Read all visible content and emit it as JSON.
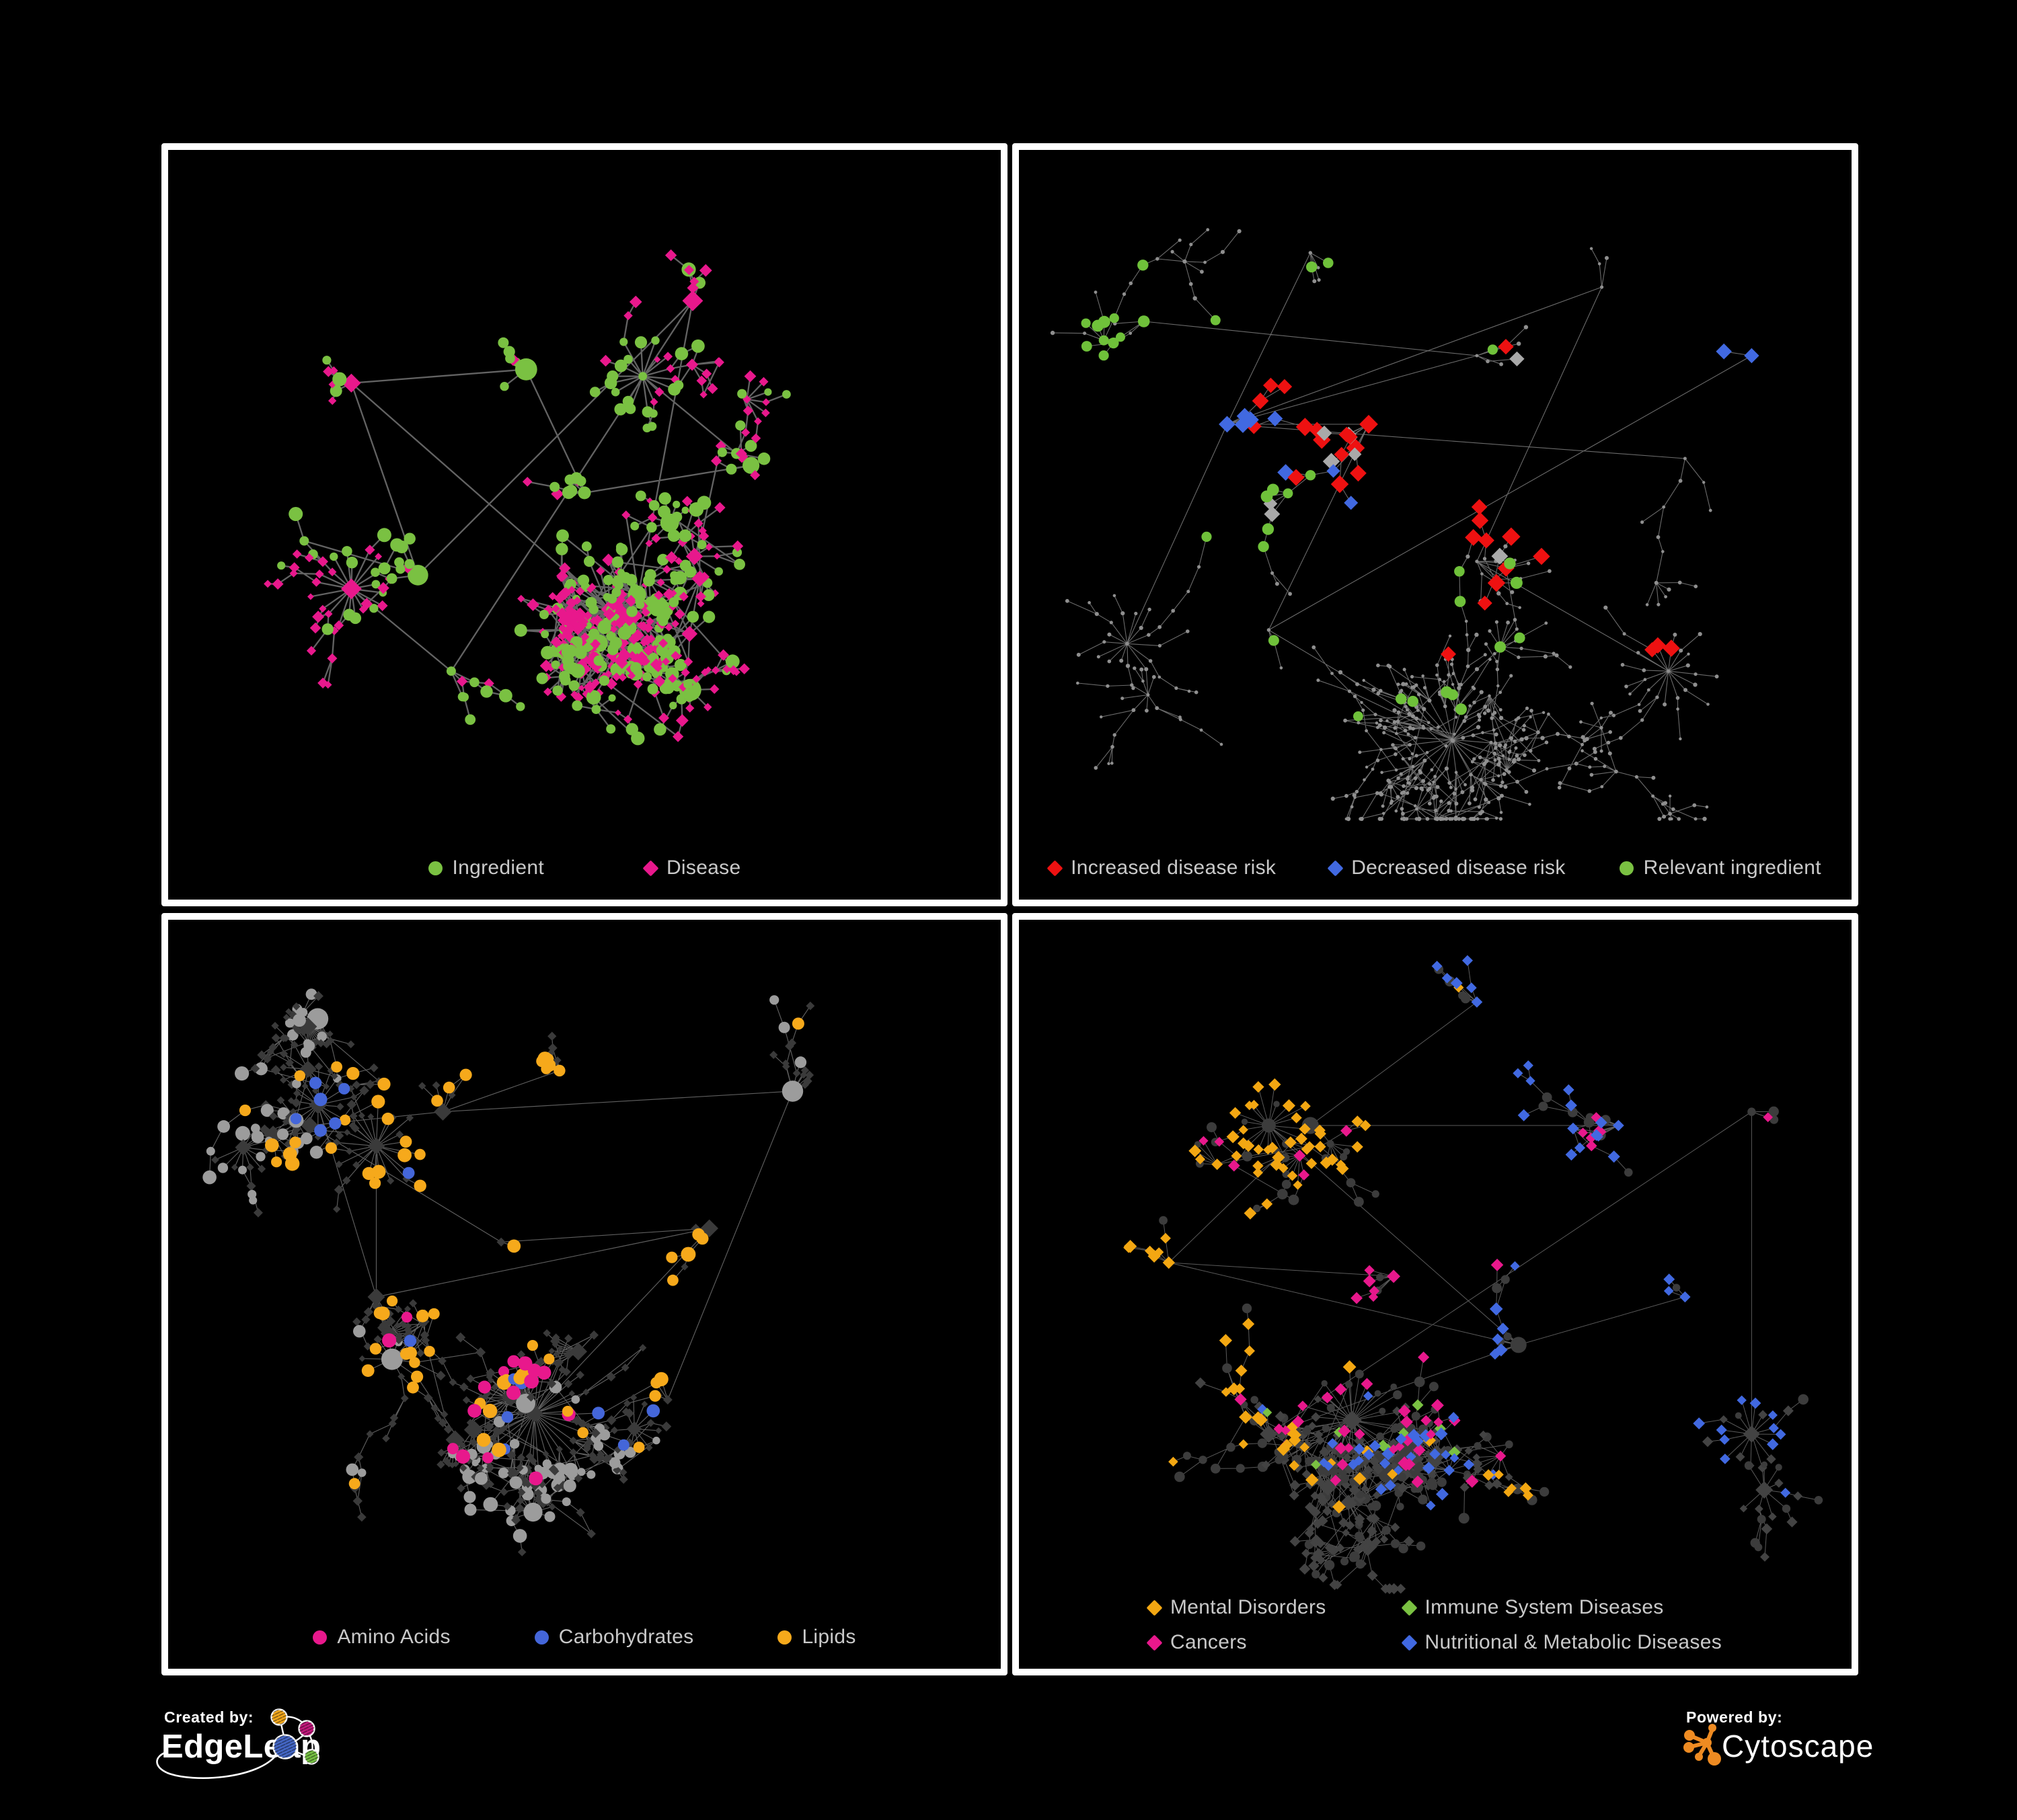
{
  "footer": {
    "created_by": "Created by:",
    "edgeleap": "EdgeLeap",
    "powered_by": "Powered by:",
    "cytoscape": "Cytoscape"
  },
  "colors": {
    "background": "#000000",
    "panel_border": "#ffffff",
    "legend_text": "#c9c9c9",
    "ingredient_green": "#7AC142",
    "disease_pink": "#E8188C",
    "risk_red": "#EE1111",
    "risk_blue": "#4169E1",
    "neutral_gray": "#A9A9A9",
    "lipid_orange": "#F6A91B",
    "cyto_orange": "#EE8B22",
    "edgeleap_orange": "#F2A71B",
    "edgeleap_magenta": "#C2187C",
    "edgeleap_blue": "#4467C6",
    "edgeleap_green": "#76C043"
  },
  "panels": [
    {
      "id": "ingredient-disease",
      "legend": [
        {
          "shape": "circle",
          "color": "#7AC142",
          "label": "Ingredient"
        },
        {
          "shape": "diamond",
          "color": "#E8188C",
          "label": "Disease"
        }
      ],
      "net": {
        "seed": 11,
        "count": 560,
        "step": 26,
        "turn": 1.5,
        "hubBias": 0.28,
        "recentBias": 0.46,
        "fanProb": 0.055,
        "fanMin": 4,
        "fanMax": 10,
        "fanR": 34,
        "cross": 240,
        "crossDist": 150,
        "clusters": [
          [
            0.43,
            0.32
          ],
          [
            0.22,
            0.34
          ],
          [
            0.5,
            0.5
          ],
          [
            0.3,
            0.62
          ],
          [
            0.63,
            0.22
          ],
          [
            0.7,
            0.46
          ],
          [
            0.34,
            0.76
          ],
          [
            0.56,
            0.68
          ]
        ],
        "bigFans": [
          {
            "c": [
              0.53,
              0.67
            ],
            "n": 30,
            "r": 60
          },
          {
            "c": [
              0.22,
              0.64
            ],
            "n": 20,
            "r": 50
          },
          {
            "c": [
              0.57,
              0.33
            ],
            "n": 18,
            "r": 45
          }
        ]
      },
      "style": {
        "styleSeed": 101,
        "edgeColor": "#6E6E6E",
        "edgeWidth": 2.3,
        "edgeOpacity": 0.9,
        "circleProb": 0.36,
        "circleColor": "#7AC142",
        "circleR": [
          6,
          11
        ],
        "diamondColor": "#E8188C",
        "diamondS": [
          5.5,
          9.5
        ],
        "hubBoost": 5
      },
      "highlights": [
        {
          "shape": "circle",
          "color": "#7AC142",
          "n": 30,
          "c": [
            0.5,
            0.4
          ],
          "sd": 0.03,
          "s": [
            6,
            10
          ]
        },
        {
          "shape": "circle",
          "color": "#7AC142",
          "n": 12,
          "c": [
            0.56,
            0.6
          ],
          "sd": 0.02,
          "s": [
            6,
            9
          ]
        },
        {
          "shape": "circle",
          "color": "#7AC142",
          "n": 10,
          "c": [
            0.4,
            0.74
          ],
          "sd": 0.02,
          "s": [
            6,
            10
          ]
        },
        {
          "shape": "circle",
          "color": "#7AC142",
          "n": 8,
          "c": [
            0.28,
            0.53
          ],
          "sd": 0.025,
          "s": [
            7,
            11
          ]
        }
      ]
    },
    {
      "id": "disease-risk",
      "legend": [
        {
          "shape": "diamond",
          "color": "#EE1111",
          "label": "Increased disease risk"
        },
        {
          "shape": "diamond",
          "color": "#4169E1",
          "label": "Decreased disease risk"
        },
        {
          "shape": "circle",
          "color": "#7AC142",
          "label": "Relevant ingredient"
        }
      ],
      "net": {
        "seed": 27,
        "count": 640,
        "step": 30,
        "turn": 1.25,
        "hubBias": 0.24,
        "recentBias": 0.5,
        "fanProb": 0.05,
        "fanMin": 4,
        "fanMax": 8,
        "fanR": 30,
        "cross": 150,
        "crossDist": 130,
        "clusters": [
          [
            0.42,
            0.4
          ],
          [
            0.25,
            0.4
          ],
          [
            0.55,
            0.3
          ],
          [
            0.35,
            0.15
          ],
          [
            0.7,
            0.2
          ],
          [
            0.8,
            0.45
          ],
          [
            0.3,
            0.7
          ],
          [
            0.55,
            0.6
          ],
          [
            0.15,
            0.25
          ],
          [
            0.88,
            0.3
          ]
        ],
        "bigFans": [
          {
            "c": [
              0.52,
              0.86
            ],
            "n": 24,
            "r": 55
          },
          {
            "c": [
              0.78,
              0.76
            ],
            "n": 16,
            "r": 42
          },
          {
            "c": [
              0.13,
              0.72
            ],
            "n": 14,
            "r": 38
          }
        ]
      },
      "style": {
        "styleSeed": 202,
        "edgeColor": "#7E7E7E",
        "edgeWidth": 1.1,
        "edgeOpacity": 0.85,
        "mode": "dots",
        "baseColor": "#8F8F8F",
        "baseR": [
          2.2,
          3.2
        ],
        "circleProb": 0.5,
        "circleColor": "#8F8F8F",
        "circleR": [
          2.2,
          3.2
        ],
        "diamondColor": "#8F8F8F",
        "diamondS": [
          2.2,
          3.2
        ],
        "hubBoost": 1
      },
      "highlights": [
        {
          "shape": "diamond",
          "color": "#EE1111",
          "n": 22,
          "c": [
            0.5,
            0.45
          ],
          "sd": 0.12,
          "s": [
            11,
            14
          ]
        },
        {
          "shape": "diamond",
          "color": "#EE1111",
          "n": 4,
          "c": [
            0.3,
            0.35
          ],
          "sd": 0.05,
          "s": [
            11,
            13
          ]
        },
        {
          "shape": "diamond",
          "color": "#EE1111",
          "n": 3,
          "c": [
            0.77,
            0.72
          ],
          "sd": 0.04,
          "s": [
            11,
            13
          ]
        },
        {
          "shape": "diamond",
          "color": "#4169E1",
          "n": 6,
          "c": [
            0.27,
            0.42
          ],
          "sd": 0.045,
          "s": [
            11,
            13
          ]
        },
        {
          "shape": "diamond",
          "color": "#4169E1",
          "n": 2,
          "c": [
            0.885,
            0.335
          ],
          "sd": 0.012,
          "s": [
            11,
            12
          ]
        },
        {
          "shape": "diamond",
          "color": "#4169E1",
          "n": 2,
          "c": [
            0.37,
            0.5
          ],
          "sd": 0.03,
          "s": [
            10,
            12
          ]
        },
        {
          "shape": "diamond",
          "color": "#A9A9A9",
          "n": 9,
          "c": [
            0.45,
            0.45
          ],
          "sd": 0.22,
          "s": [
            10,
            13
          ]
        },
        {
          "shape": "circle",
          "color": "#6FC13A",
          "n": 26,
          "c": [
            0.38,
            0.4
          ],
          "sd": 0.14,
          "s": [
            7,
            9
          ]
        },
        {
          "shape": "circle",
          "color": "#6FC13A",
          "n": 6,
          "c": [
            0.12,
            0.33
          ],
          "sd": 0.05,
          "s": [
            7,
            9
          ]
        },
        {
          "shape": "circle",
          "color": "#6FC13A",
          "n": 3,
          "c": [
            0.52,
            0.8
          ],
          "sd": 0.06,
          "s": [
            7,
            9
          ]
        }
      ]
    },
    {
      "id": "macronutrients",
      "legend": [
        {
          "shape": "circle",
          "color": "#E8188C",
          "label": "Amino Acids"
        },
        {
          "shape": "circle",
          "color": "#4466D9",
          "label": "Carbohydrates"
        },
        {
          "shape": "circle",
          "color": "#F6A91B",
          "label": "Lipids"
        }
      ],
      "net": {
        "seed": 33,
        "count": 570,
        "step": 27,
        "turn": 1.45,
        "hubBias": 0.3,
        "recentBias": 0.44,
        "fanProb": 0.055,
        "fanMin": 5,
        "fanMax": 12,
        "fanR": 36,
        "cross": 300,
        "crossDist": 140,
        "clusters": [
          [
            0.17,
            0.3
          ],
          [
            0.33,
            0.28
          ],
          [
            0.47,
            0.22
          ],
          [
            0.4,
            0.47
          ],
          [
            0.65,
            0.45
          ],
          [
            0.75,
            0.25
          ],
          [
            0.25,
            0.55
          ],
          [
            0.6,
            0.7
          ]
        ],
        "bigFans": [
          {
            "c": [
              0.44,
              0.72
            ],
            "n": 38,
            "r": 68
          },
          {
            "c": [
              0.25,
              0.33
            ],
            "n": 24,
            "r": 52
          },
          {
            "c": [
              0.18,
              0.27
            ],
            "n": 20,
            "r": 46
          }
        ]
      },
      "style": {
        "styleSeed": 303,
        "edgeColor": "#646464",
        "edgeWidth": 1.15,
        "edgeOpacity": 0.95,
        "circleProb": 0.38,
        "circleColor": "#9C9C9C",
        "circleR": [
          6,
          11
        ],
        "diamondColor": "#3A3A3A",
        "diamondS": [
          5.5,
          7.5
        ],
        "hubBoost": 5
      },
      "highlights": [
        {
          "shape": "circle",
          "color": "#F6A91B",
          "n": 34,
          "c": [
            0.45,
            0.26
          ],
          "sd": 0.07,
          "s": [
            8,
            11
          ],
          "prefer": "circle"
        },
        {
          "shape": "circle",
          "color": "#F6A91B",
          "n": 20,
          "c": [
            0.4,
            0.5
          ],
          "sd": 0.09,
          "s": [
            8,
            11
          ],
          "prefer": "circle"
        },
        {
          "shape": "circle",
          "color": "#F6A91B",
          "n": 8,
          "c": [
            0.63,
            0.52
          ],
          "sd": 0.1,
          "s": [
            8,
            10
          ],
          "prefer": "circle"
        },
        {
          "shape": "circle",
          "color": "#F6A91B",
          "n": 6,
          "c": [
            0.25,
            0.7
          ],
          "sd": 0.12,
          "s": [
            8,
            10
          ],
          "prefer": "circle"
        },
        {
          "shape": "circle",
          "color": "#4466D9",
          "n": 9,
          "c": [
            0.5,
            0.36
          ],
          "sd": 0.05,
          "s": [
            8,
            10
          ],
          "prefer": "circle"
        },
        {
          "shape": "circle",
          "color": "#4466D9",
          "n": 4,
          "c": [
            0.3,
            0.3
          ],
          "sd": 0.12,
          "s": [
            8,
            10
          ],
          "prefer": "circle"
        },
        {
          "shape": "circle",
          "color": "#4466D9",
          "n": 2,
          "c": [
            0.8,
            0.6
          ],
          "sd": 0.03,
          "s": [
            8,
            10
          ],
          "prefer": "circle"
        },
        {
          "shape": "circle",
          "color": "#E8188C",
          "n": 16,
          "c": [
            0.45,
            0.55
          ],
          "sd": 0.4,
          "s": [
            8,
            11
          ],
          "prefer": "circle"
        }
      ]
    },
    {
      "id": "disease-classes",
      "legend": [
        {
          "shape": "diamond",
          "color": "#F3A712",
          "label": "Mental Disorders"
        },
        {
          "shape": "diamond",
          "color": "#7AC142",
          "label": "Immune System Diseases"
        },
        {
          "shape": "diamond",
          "color": "#E8188C",
          "label": "Cancers"
        },
        {
          "shape": "diamond",
          "color": "#4169E1",
          "label": "Nutritional & Metabolic Diseases"
        }
      ],
      "net": {
        "seed": 47,
        "count": 600,
        "step": 28,
        "turn": 1.4,
        "hubBias": 0.28,
        "recentBias": 0.46,
        "fanProb": 0.05,
        "fanMin": 4,
        "fanMax": 10,
        "fanR": 34,
        "cross": 260,
        "crossDist": 140,
        "clusters": [
          [
            0.18,
            0.5
          ],
          [
            0.35,
            0.3
          ],
          [
            0.45,
            0.52
          ],
          [
            0.6,
            0.62
          ],
          [
            0.72,
            0.3
          ],
          [
            0.55,
            0.12
          ],
          [
            0.3,
            0.75
          ],
          [
            0.8,
            0.55
          ],
          [
            0.88,
            0.28
          ]
        ],
        "bigFans": [
          {
            "c": [
              0.4,
              0.73
            ],
            "n": 34,
            "r": 62
          },
          {
            "c": [
              0.3,
              0.3
            ],
            "n": 20,
            "r": 48
          },
          {
            "c": [
              0.88,
              0.75
            ],
            "n": 16,
            "r": 42
          }
        ]
      },
      "style": {
        "styleSeed": 404,
        "edgeColor": "#787878",
        "edgeWidth": 1.0,
        "edgeOpacity": 0.75,
        "circleProb": 0.35,
        "circleColor": "#3C3C3C",
        "circleR": [
          5.5,
          8
        ],
        "diamondColor": "#434343",
        "diamondS": [
          6.5,
          8.5
        ],
        "hubBoost": 4
      },
      "highlights": [
        {
          "shape": "diamond",
          "color": "#F3A712",
          "n": 70,
          "c": [
            0.17,
            0.5
          ],
          "sd": 0.075,
          "s": [
            7,
            10
          ],
          "prefer": "diamond"
        },
        {
          "shape": "diamond",
          "color": "#F3A712",
          "n": 10,
          "c": [
            0.33,
            0.12
          ],
          "sd": 0.06,
          "s": [
            7,
            9
          ],
          "prefer": "diamond"
        },
        {
          "shape": "diamond",
          "color": "#F3A712",
          "n": 6,
          "c": [
            0.6,
            0.85
          ],
          "sd": 0.1,
          "s": [
            7,
            9
          ],
          "prefer": "diamond"
        },
        {
          "shape": "diamond",
          "color": "#E8188C",
          "n": 40,
          "c": [
            0.44,
            0.54
          ],
          "sd": 0.09,
          "s": [
            7,
            10
          ],
          "prefer": "diamond"
        },
        {
          "shape": "diamond",
          "color": "#E8188C",
          "n": 8,
          "c": [
            0.86,
            0.3
          ],
          "sd": 0.035,
          "s": [
            7,
            9
          ],
          "prefer": "diamond"
        },
        {
          "shape": "diamond",
          "color": "#E8188C",
          "n": 7,
          "c": [
            0.3,
            0.35
          ],
          "sd": 0.1,
          "s": [
            7,
            9
          ],
          "prefer": "diamond"
        },
        {
          "shape": "diamond",
          "color": "#4169E1",
          "n": 26,
          "c": [
            0.63,
            0.6
          ],
          "sd": 0.06,
          "s": [
            7,
            10
          ],
          "prefer": "diamond"
        },
        {
          "shape": "diamond",
          "color": "#4169E1",
          "n": 16,
          "c": [
            0.73,
            0.33
          ],
          "sd": 0.09,
          "s": [
            7,
            9
          ],
          "prefer": "diamond"
        },
        {
          "shape": "diamond",
          "color": "#4169E1",
          "n": 12,
          "c": [
            0.52,
            0.1
          ],
          "sd": 0.07,
          "s": [
            7,
            9
          ],
          "prefer": "diamond"
        },
        {
          "shape": "diamond",
          "color": "#4169E1",
          "n": 10,
          "c": [
            0.88,
            0.55
          ],
          "sd": 0.06,
          "s": [
            7,
            9
          ],
          "prefer": "diamond"
        },
        {
          "shape": "diamond",
          "color": "#4169E1",
          "n": 8,
          "c": [
            0.25,
            0.25
          ],
          "sd": 0.15,
          "s": [
            7,
            9
          ],
          "prefer": "diamond"
        },
        {
          "shape": "diamond",
          "color": "#7AC142",
          "n": 9,
          "c": [
            0.45,
            0.45
          ],
          "sd": 0.25,
          "s": [
            7,
            9
          ],
          "prefer": "diamond"
        }
      ]
    }
  ]
}
